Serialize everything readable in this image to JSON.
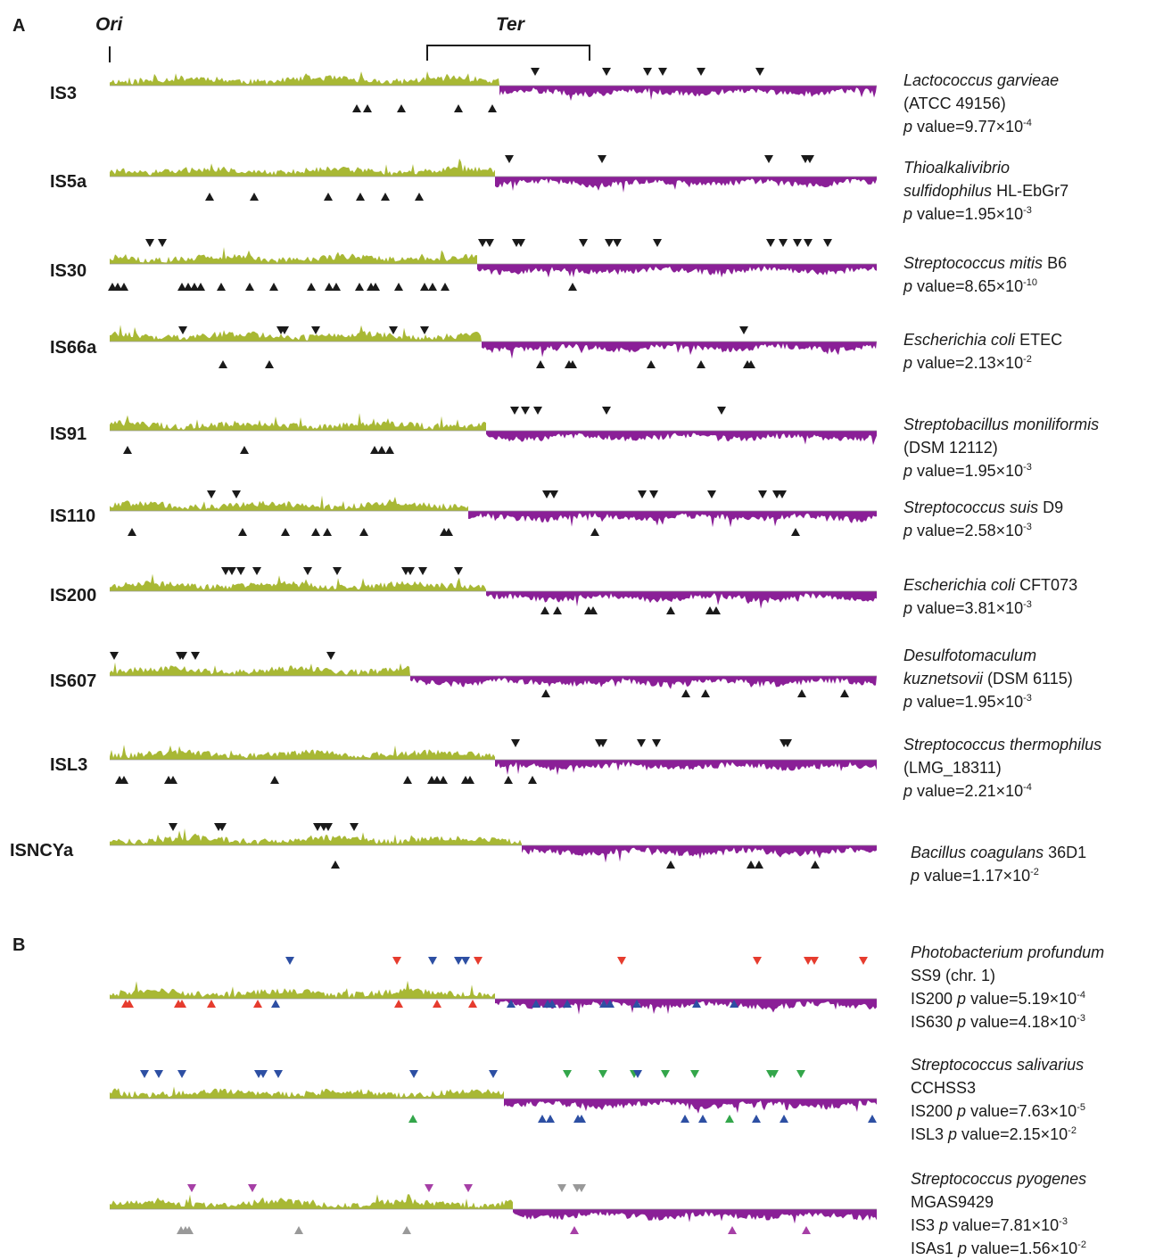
{
  "figure": {
    "panel_a_label": "A",
    "panel_b_label": "B",
    "ori_label": "Ori",
    "ter_label": "Ter"
  },
  "colors": {
    "leading": "#a8b834",
    "lagging": "#8a1f97",
    "marker_black": "#1a1a1a",
    "marker_red": "#e63c2e",
    "marker_blue": "#2d4fa3",
    "marker_green": "#33a64a",
    "marker_magenta": "#a63fa6",
    "marker_gray": "#999999"
  },
  "panel_a": {
    "rows": [
      {
        "label": "IS3",
        "species": [
          {
            "text": "Lactococcus garvieae",
            "italic": true
          }
        ],
        "strain": [
          {
            "text": "(ATCC 49156)",
            "italic": false
          }
        ],
        "pvalues": [
          {
            "prefix": "",
            "p": "p",
            "rest": " value=9.77×10",
            "exp": "-4"
          }
        ]
      },
      {
        "label": "IS5a",
        "species": [
          {
            "text": "Thioalkalivibrio",
            "italic": true
          }
        ],
        "strain": [
          {
            "text": "sulfidophilus",
            "italic": true
          },
          {
            "text": " HL-EbGr7",
            "italic": false
          }
        ],
        "pvalues": [
          {
            "prefix": "",
            "p": "p",
            "rest": " value=1.95×10",
            "exp": "-3"
          }
        ]
      },
      {
        "label": "IS30",
        "species": [
          {
            "text": "Streptococcus mitis",
            "italic": true
          },
          {
            "text": " B6",
            "italic": false
          }
        ],
        "strain": [],
        "pvalues": [
          {
            "prefix": "",
            "p": "p",
            "rest": " value=8.65×10",
            "exp": "-10"
          }
        ]
      },
      {
        "label": "IS66a",
        "species": [
          {
            "text": "Escherichia coli",
            "italic": true
          },
          {
            "text": " ETEC",
            "italic": false
          }
        ],
        "strain": [],
        "pvalues": [
          {
            "prefix": "",
            "p": "p",
            "rest": " value=2.13×10",
            "exp": "-2"
          }
        ]
      },
      {
        "label": "IS91",
        "species": [
          {
            "text": "Streptobacillus moniliformis",
            "italic": true
          }
        ],
        "strain": [
          {
            "text": "(DSM 12112)",
            "italic": false
          }
        ],
        "pvalues": [
          {
            "prefix": "",
            "p": "p",
            "rest": " value=1.95×10",
            "exp": "-3"
          }
        ]
      },
      {
        "label": "IS110",
        "species": [
          {
            "text": "Streptococcus suis",
            "italic": true
          },
          {
            "text": " D9",
            "italic": false
          }
        ],
        "strain": [],
        "pvalues": [
          {
            "prefix": "",
            "p": "p",
            "rest": " value=2.58×10",
            "exp": "-3"
          }
        ]
      },
      {
        "label": "IS200",
        "species": [
          {
            "text": "Escherichia coli",
            "italic": true
          },
          {
            "text": " CFT073",
            "italic": false
          }
        ],
        "strain": [],
        "pvalues": [
          {
            "prefix": "",
            "p": "p",
            "rest": " value=3.81×10",
            "exp": "-3"
          }
        ]
      },
      {
        "label": "IS607",
        "species": [
          {
            "text": "Desulfotomaculum",
            "italic": true
          }
        ],
        "strain": [
          {
            "text": "kuznetsovii",
            "italic": true
          },
          {
            "text": " (DSM 6115)",
            "italic": false
          }
        ],
        "pvalues": [
          {
            "prefix": "",
            "p": "p",
            "rest": " value=1.95×10",
            "exp": "-3"
          }
        ]
      },
      {
        "label": "ISL3",
        "species": [
          {
            "text": "Streptococcus thermophilus",
            "italic": true
          }
        ],
        "strain": [
          {
            "text": "(LMG_18311)",
            "italic": false
          }
        ],
        "pvalues": [
          {
            "prefix": "",
            "p": "p",
            "rest": " value=2.21×10",
            "exp": "-4"
          }
        ]
      },
      {
        "label": "ISNCYa",
        "species": [
          {
            "text": "Bacillus coagulans",
            "italic": true
          },
          {
            "text": " 36D1",
            "italic": false
          }
        ],
        "strain": [],
        "pvalues": [
          {
            "prefix": "",
            "p": "p",
            "rest": " value=1.17×10",
            "exp": "-2"
          }
        ]
      }
    ]
  },
  "panel_b": {
    "rows": [
      {
        "species": [
          {
            "text": "Photobacterium profundum",
            "italic": true
          }
        ],
        "strain": [
          {
            "text": "SS9 (chr. 1)",
            "italic": false
          }
        ],
        "pvalues": [
          {
            "prefix": "IS200 ",
            "p": "p",
            "rest": " value=5.19×10",
            "exp": "-4"
          },
          {
            "prefix": "IS630 ",
            "p": "p",
            "rest": " value=4.18×10",
            "exp": "-3"
          }
        ]
      },
      {
        "species": [
          {
            "text": "Streptococcus salivarius",
            "italic": true
          }
        ],
        "strain": [
          {
            "text": "CCHSS3",
            "italic": false
          }
        ],
        "pvalues": [
          {
            "prefix": "IS200 ",
            "p": "p",
            "rest": " value=7.63×10",
            "exp": "-5"
          },
          {
            "prefix": "ISL3 ",
            "p": "p",
            "rest": " value=2.15×10",
            "exp": "-2"
          }
        ]
      },
      {
        "species": [
          {
            "text": "Streptococcus pyogenes",
            "italic": true
          }
        ],
        "strain": [
          {
            "text": "MGAS9429",
            "italic": false
          }
        ],
        "pvalues": [
          {
            "prefix": "IS3 ",
            "p": "p",
            "rest": " value=7.81×10",
            "exp": "-3"
          },
          {
            "prefix": "ISAs1 ",
            "p": "p",
            "rest": " value=1.56×10",
            "exp": "-2"
          }
        ]
      }
    ]
  }
}
